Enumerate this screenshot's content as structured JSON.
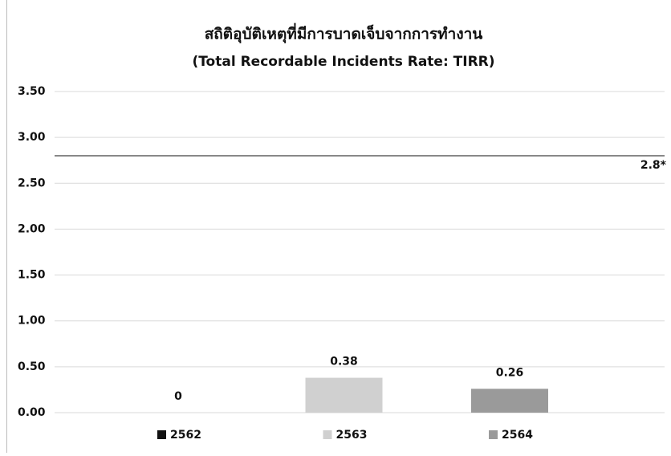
{
  "chart_data": {
    "type": "bar",
    "title": "สถิติอุบัติเหตุที่มีการบาดเจ็บจากการทำงาน",
    "subtitle": "(Total Recordable Incidents Rate: TIRR)",
    "categories": [
      "2562",
      "2563",
      "2564"
    ],
    "values": [
      0,
      0.38,
      0.26
    ],
    "colors": [
      "#111111",
      "#d0d0d0",
      "#9a9a9a"
    ],
    "ylim": [
      0,
      3.5
    ],
    "yticks": [
      {
        "value": 0,
        "label": "0.00"
      },
      {
        "value": 0.5,
        "label": "0.50"
      },
      {
        "value": 1,
        "label": "1.00"
      },
      {
        "value": 1.5,
        "label": "1.50"
      },
      {
        "value": 2,
        "label": "2.00"
      },
      {
        "value": 2.5,
        "label": "2.50"
      },
      {
        "value": 3,
        "label": "3.00"
      },
      {
        "value": 3.5,
        "label": "3.50"
      }
    ],
    "grid": true,
    "reference_line": {
      "value": 2.8,
      "label": "2.8*"
    },
    "legend": "bottom"
  }
}
